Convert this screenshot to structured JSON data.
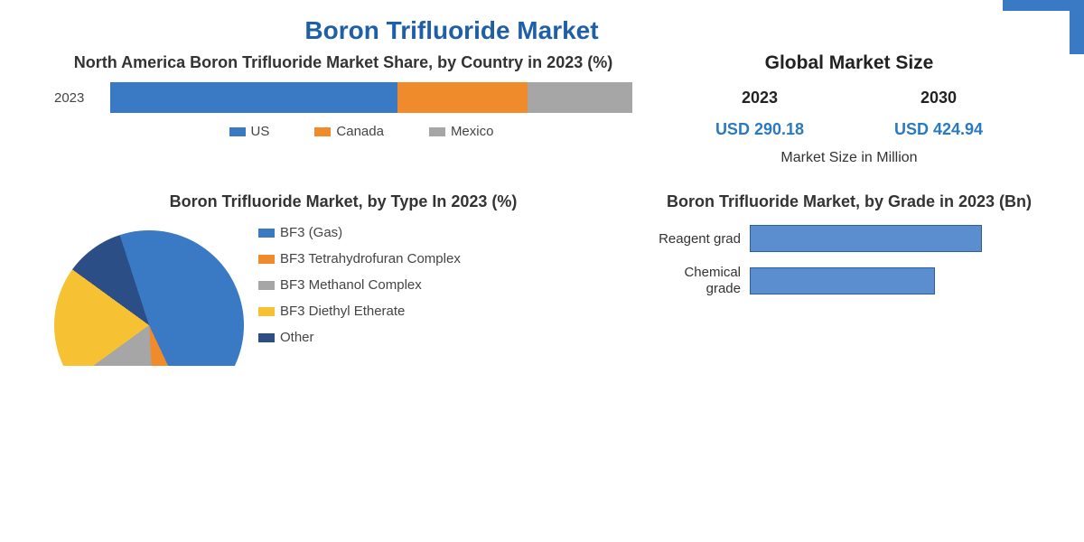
{
  "title": "Boron Trifluoride Market",
  "stacked_chart": {
    "title": "North America Boron Trifluoride Market Share, by Country in 2023 (%)",
    "row_label": "2023",
    "segments": [
      {
        "name": "US",
        "value": 55,
        "color": "#3a79c4"
      },
      {
        "name": "Canada",
        "value": 25,
        "color": "#f08b2c"
      },
      {
        "name": "Mexico",
        "value": 20,
        "color": "#a6a6a6"
      }
    ],
    "legend_swatch_height": 10
  },
  "market_size": {
    "title": "Global Market Size",
    "columns": [
      {
        "year": "2023",
        "value": "USD 290.18"
      },
      {
        "year": "2030",
        "value": "USD 424.94"
      }
    ],
    "note": "Market Size in Million",
    "value_color": "#2a7ac2"
  },
  "pie_chart": {
    "title": "Boron Trifluoride Market, by Type In 2023 (%)",
    "slices": [
      {
        "name": "BF3 (Gas)",
        "value": 48,
        "color": "#3a79c4"
      },
      {
        "name": "BF3 Tetrahydrofuran Complex",
        "value": 6,
        "color": "#f08b2c"
      },
      {
        "name": "BF3 Methanol Complex",
        "value": 16,
        "color": "#a6a6a6"
      },
      {
        "name": "BF3 Diethyl Etherate",
        "value": 20,
        "color": "#f6c233"
      },
      {
        "name": "Other",
        "value": 10,
        "color": "#2b4e86"
      }
    ]
  },
  "hbar_chart": {
    "title": "Boron Trifluoride Market, by Grade in 2023 (Bn)",
    "bars": [
      {
        "label": "Reagent grad",
        "value": 78,
        "color": "#5a8ecf"
      },
      {
        "label": "Chemical grade",
        "value": 62,
        "color": "#5a8ecf"
      }
    ],
    "xmax": 100,
    "bar_border_color": "#2f5e9e"
  },
  "background_color": "#ffffff",
  "title_color": "#1f5fa8"
}
